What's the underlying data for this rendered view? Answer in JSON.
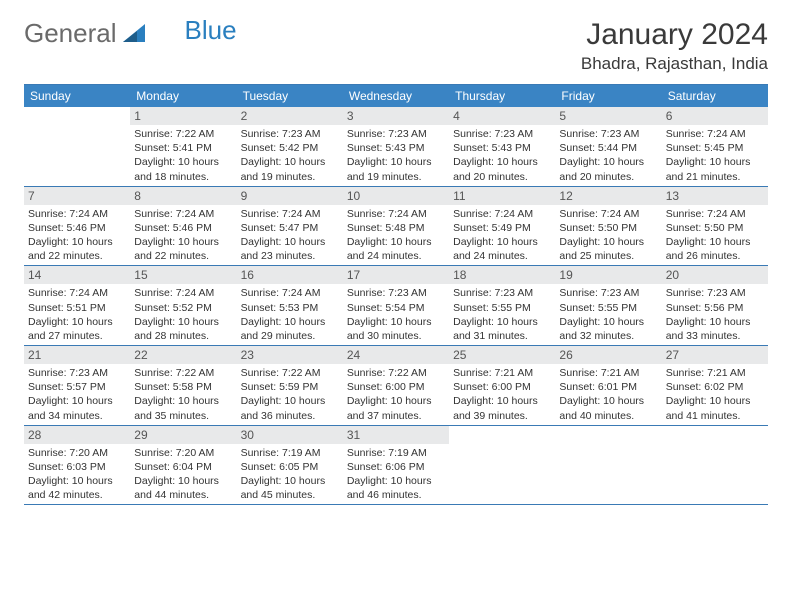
{
  "logo": {
    "text1": "General",
    "text2": "Blue"
  },
  "title": "January 2024",
  "location": "Bhadra, Rajasthan, India",
  "colors": {
    "header_bg": "#3a84c4",
    "header_text": "#ffffff",
    "daynum_bg": "#e8e9ea",
    "border": "#3a7ab5",
    "logo_gray": "#6a6a6a",
    "logo_blue": "#2a7fbf"
  },
  "day_names": [
    "Sunday",
    "Monday",
    "Tuesday",
    "Wednesday",
    "Thursday",
    "Friday",
    "Saturday"
  ],
  "weeks": [
    [
      {
        "n": "",
        "sr": "",
        "ss": "",
        "dl": ""
      },
      {
        "n": "1",
        "sr": "Sunrise: 7:22 AM",
        "ss": "Sunset: 5:41 PM",
        "dl": "Daylight: 10 hours and 18 minutes."
      },
      {
        "n": "2",
        "sr": "Sunrise: 7:23 AM",
        "ss": "Sunset: 5:42 PM",
        "dl": "Daylight: 10 hours and 19 minutes."
      },
      {
        "n": "3",
        "sr": "Sunrise: 7:23 AM",
        "ss": "Sunset: 5:43 PM",
        "dl": "Daylight: 10 hours and 19 minutes."
      },
      {
        "n": "4",
        "sr": "Sunrise: 7:23 AM",
        "ss": "Sunset: 5:43 PM",
        "dl": "Daylight: 10 hours and 20 minutes."
      },
      {
        "n": "5",
        "sr": "Sunrise: 7:23 AM",
        "ss": "Sunset: 5:44 PM",
        "dl": "Daylight: 10 hours and 20 minutes."
      },
      {
        "n": "6",
        "sr": "Sunrise: 7:24 AM",
        "ss": "Sunset: 5:45 PM",
        "dl": "Daylight: 10 hours and 21 minutes."
      }
    ],
    [
      {
        "n": "7",
        "sr": "Sunrise: 7:24 AM",
        "ss": "Sunset: 5:46 PM",
        "dl": "Daylight: 10 hours and 22 minutes."
      },
      {
        "n": "8",
        "sr": "Sunrise: 7:24 AM",
        "ss": "Sunset: 5:46 PM",
        "dl": "Daylight: 10 hours and 22 minutes."
      },
      {
        "n": "9",
        "sr": "Sunrise: 7:24 AM",
        "ss": "Sunset: 5:47 PM",
        "dl": "Daylight: 10 hours and 23 minutes."
      },
      {
        "n": "10",
        "sr": "Sunrise: 7:24 AM",
        "ss": "Sunset: 5:48 PM",
        "dl": "Daylight: 10 hours and 24 minutes."
      },
      {
        "n": "11",
        "sr": "Sunrise: 7:24 AM",
        "ss": "Sunset: 5:49 PM",
        "dl": "Daylight: 10 hours and 24 minutes."
      },
      {
        "n": "12",
        "sr": "Sunrise: 7:24 AM",
        "ss": "Sunset: 5:50 PM",
        "dl": "Daylight: 10 hours and 25 minutes."
      },
      {
        "n": "13",
        "sr": "Sunrise: 7:24 AM",
        "ss": "Sunset: 5:50 PM",
        "dl": "Daylight: 10 hours and 26 minutes."
      }
    ],
    [
      {
        "n": "14",
        "sr": "Sunrise: 7:24 AM",
        "ss": "Sunset: 5:51 PM",
        "dl": "Daylight: 10 hours and 27 minutes."
      },
      {
        "n": "15",
        "sr": "Sunrise: 7:24 AM",
        "ss": "Sunset: 5:52 PM",
        "dl": "Daylight: 10 hours and 28 minutes."
      },
      {
        "n": "16",
        "sr": "Sunrise: 7:24 AM",
        "ss": "Sunset: 5:53 PM",
        "dl": "Daylight: 10 hours and 29 minutes."
      },
      {
        "n": "17",
        "sr": "Sunrise: 7:23 AM",
        "ss": "Sunset: 5:54 PM",
        "dl": "Daylight: 10 hours and 30 minutes."
      },
      {
        "n": "18",
        "sr": "Sunrise: 7:23 AM",
        "ss": "Sunset: 5:55 PM",
        "dl": "Daylight: 10 hours and 31 minutes."
      },
      {
        "n": "19",
        "sr": "Sunrise: 7:23 AM",
        "ss": "Sunset: 5:55 PM",
        "dl": "Daylight: 10 hours and 32 minutes."
      },
      {
        "n": "20",
        "sr": "Sunrise: 7:23 AM",
        "ss": "Sunset: 5:56 PM",
        "dl": "Daylight: 10 hours and 33 minutes."
      }
    ],
    [
      {
        "n": "21",
        "sr": "Sunrise: 7:23 AM",
        "ss": "Sunset: 5:57 PM",
        "dl": "Daylight: 10 hours and 34 minutes."
      },
      {
        "n": "22",
        "sr": "Sunrise: 7:22 AM",
        "ss": "Sunset: 5:58 PM",
        "dl": "Daylight: 10 hours and 35 minutes."
      },
      {
        "n": "23",
        "sr": "Sunrise: 7:22 AM",
        "ss": "Sunset: 5:59 PM",
        "dl": "Daylight: 10 hours and 36 minutes."
      },
      {
        "n": "24",
        "sr": "Sunrise: 7:22 AM",
        "ss": "Sunset: 6:00 PM",
        "dl": "Daylight: 10 hours and 37 minutes."
      },
      {
        "n": "25",
        "sr": "Sunrise: 7:21 AM",
        "ss": "Sunset: 6:00 PM",
        "dl": "Daylight: 10 hours and 39 minutes."
      },
      {
        "n": "26",
        "sr": "Sunrise: 7:21 AM",
        "ss": "Sunset: 6:01 PM",
        "dl": "Daylight: 10 hours and 40 minutes."
      },
      {
        "n": "27",
        "sr": "Sunrise: 7:21 AM",
        "ss": "Sunset: 6:02 PM",
        "dl": "Daylight: 10 hours and 41 minutes."
      }
    ],
    [
      {
        "n": "28",
        "sr": "Sunrise: 7:20 AM",
        "ss": "Sunset: 6:03 PM",
        "dl": "Daylight: 10 hours and 42 minutes."
      },
      {
        "n": "29",
        "sr": "Sunrise: 7:20 AM",
        "ss": "Sunset: 6:04 PM",
        "dl": "Daylight: 10 hours and 44 minutes."
      },
      {
        "n": "30",
        "sr": "Sunrise: 7:19 AM",
        "ss": "Sunset: 6:05 PM",
        "dl": "Daylight: 10 hours and 45 minutes."
      },
      {
        "n": "31",
        "sr": "Sunrise: 7:19 AM",
        "ss": "Sunset: 6:06 PM",
        "dl": "Daylight: 10 hours and 46 minutes."
      },
      {
        "n": "",
        "sr": "",
        "ss": "",
        "dl": ""
      },
      {
        "n": "",
        "sr": "",
        "ss": "",
        "dl": ""
      },
      {
        "n": "",
        "sr": "",
        "ss": "",
        "dl": ""
      }
    ]
  ]
}
